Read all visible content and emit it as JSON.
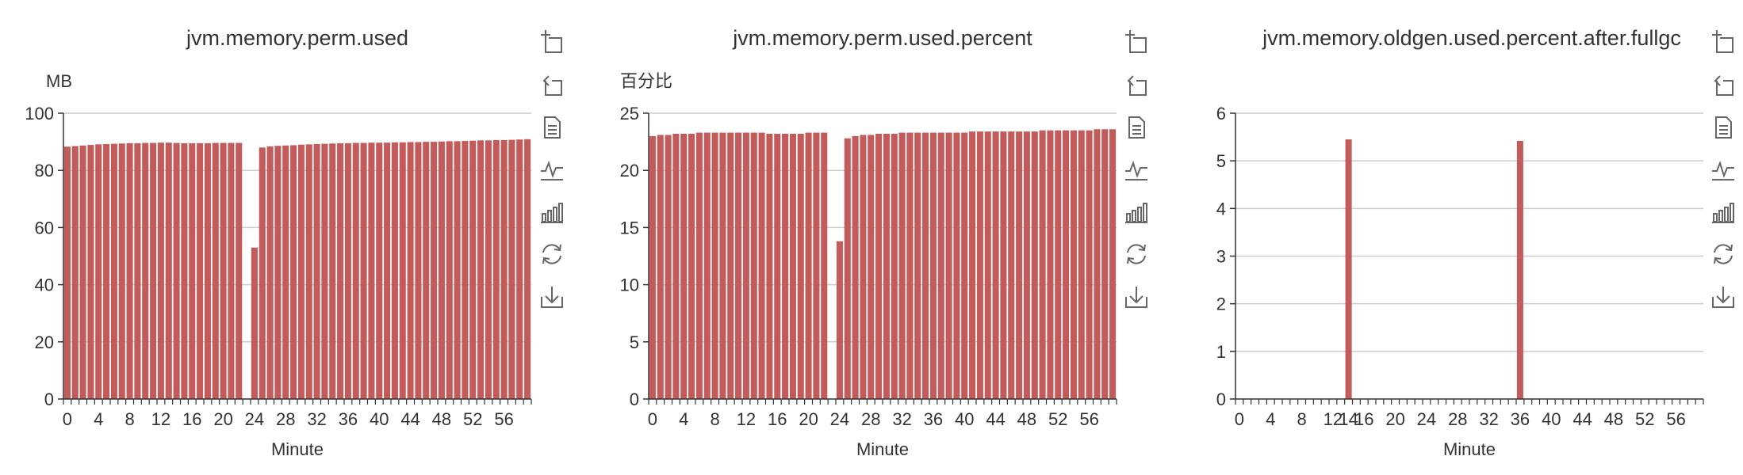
{
  "chart_data": [
    {
      "type": "bar",
      "title": "jvm.memory.perm.used",
      "ylabel": "MB",
      "xlabel": "Minute",
      "ylim": [
        0,
        100
      ],
      "yticks": [
        0,
        20,
        40,
        60,
        80,
        100
      ],
      "x": [
        0,
        1,
        2,
        3,
        4,
        5,
        6,
        7,
        8,
        9,
        10,
        11,
        12,
        13,
        14,
        15,
        16,
        17,
        18,
        19,
        20,
        21,
        22,
        23,
        24,
        25,
        26,
        27,
        28,
        29,
        30,
        31,
        32,
        33,
        34,
        35,
        36,
        37,
        38,
        39,
        40,
        41,
        42,
        43,
        44,
        45,
        46,
        47,
        48,
        49,
        50,
        51,
        52,
        53,
        54,
        55,
        56,
        57,
        58,
        59
      ],
      "xtick_labels": [
        "0",
        "4",
        "8",
        "12",
        "16",
        "20",
        "24",
        "28",
        "32",
        "36",
        "40",
        "44",
        "48",
        "52",
        "56"
      ],
      "series": [
        {
          "values": [
            88.3,
            88.5,
            88.7,
            88.9,
            89.1,
            89.2,
            89.3,
            89.4,
            89.5,
            89.5,
            89.6,
            89.6,
            89.7,
            89.7,
            89.6,
            89.5,
            89.5,
            89.5,
            89.5,
            89.6,
            89.6,
            89.6,
            89.6,
            null,
            53.0,
            88.0,
            88.4,
            88.6,
            88.7,
            88.8,
            89.0,
            89.1,
            89.2,
            89.3,
            89.4,
            89.5,
            89.5,
            89.6,
            89.6,
            89.7,
            89.7,
            89.7,
            89.8,
            89.8,
            89.9,
            89.9,
            90.0,
            90.0,
            90.1,
            90.2,
            90.2,
            90.3,
            90.4,
            90.5,
            90.5,
            90.6,
            90.6,
            90.7,
            90.8,
            90.9
          ]
        }
      ],
      "grid": true
    },
    {
      "type": "bar",
      "title": "jvm.memory.perm.used.percent",
      "ylabel": "百分比",
      "xlabel": "Minute",
      "ylim": [
        0,
        25
      ],
      "yticks": [
        0,
        5,
        10,
        15,
        20,
        25
      ],
      "x": [
        0,
        1,
        2,
        3,
        4,
        5,
        6,
        7,
        8,
        9,
        10,
        11,
        12,
        13,
        14,
        15,
        16,
        17,
        18,
        19,
        20,
        21,
        22,
        23,
        24,
        25,
        26,
        27,
        28,
        29,
        30,
        31,
        32,
        33,
        34,
        35,
        36,
        37,
        38,
        39,
        40,
        41,
        42,
        43,
        44,
        45,
        46,
        47,
        48,
        49,
        50,
        51,
        52,
        53,
        54,
        55,
        56,
        57,
        58,
        59
      ],
      "xtick_labels": [
        "0",
        "4",
        "8",
        "12",
        "16",
        "20",
        "24",
        "28",
        "32",
        "36",
        "40",
        "44",
        "48",
        "52",
        "56"
      ],
      "series": [
        {
          "values": [
            23.0,
            23.1,
            23.1,
            23.2,
            23.2,
            23.2,
            23.3,
            23.3,
            23.3,
            23.3,
            23.3,
            23.3,
            23.3,
            23.3,
            23.3,
            23.2,
            23.2,
            23.2,
            23.2,
            23.2,
            23.3,
            23.3,
            23.3,
            null,
            13.8,
            22.8,
            23.0,
            23.1,
            23.1,
            23.2,
            23.2,
            23.2,
            23.3,
            23.3,
            23.3,
            23.3,
            23.3,
            23.3,
            23.3,
            23.3,
            23.3,
            23.4,
            23.4,
            23.4,
            23.4,
            23.4,
            23.4,
            23.4,
            23.4,
            23.4,
            23.5,
            23.5,
            23.5,
            23.5,
            23.5,
            23.5,
            23.5,
            23.6,
            23.6,
            23.6
          ]
        }
      ],
      "grid": true
    },
    {
      "type": "bar",
      "title": "jvm.memory.oldgen.used.percent.after.fullgc",
      "ylabel": "",
      "xlabel": "Minute",
      "ylim": [
        0,
        6
      ],
      "yticks": [
        0,
        1,
        2,
        3,
        4,
        5,
        6
      ],
      "x": [
        0,
        1,
        2,
        3,
        4,
        5,
        6,
        7,
        8,
        9,
        10,
        11,
        12,
        13,
        14,
        15,
        16,
        17,
        18,
        19,
        20,
        21,
        22,
        23,
        24,
        25,
        26,
        27,
        28,
        29,
        30,
        31,
        32,
        33,
        34,
        35,
        36,
        37,
        38,
        39,
        40,
        41,
        42,
        43,
        44,
        45,
        46,
        47,
        48,
        49,
        50,
        51,
        52,
        53,
        54,
        55,
        56,
        57,
        58,
        59
      ],
      "xtick_labels": [
        "0",
        "4",
        "8",
        "12",
        "14",
        "16",
        "20",
        "24",
        "28",
        "32",
        "36",
        "40",
        "44",
        "48",
        "52",
        "56"
      ],
      "series": [
        {
          "values": [
            0,
            0,
            0,
            0,
            0,
            0,
            0,
            0,
            0,
            0,
            0,
            0,
            0,
            0,
            5.45,
            0,
            0,
            0,
            0,
            0,
            0,
            0,
            0,
            0,
            0,
            0,
            0,
            0,
            0,
            0,
            0,
            0,
            0,
            0,
            0,
            0,
            5.42,
            0,
            0,
            0,
            0,
            0,
            0,
            0,
            0,
            0,
            0,
            0,
            0,
            0,
            0,
            0,
            0,
            0,
            0,
            0,
            0,
            0,
            0,
            0
          ]
        }
      ],
      "grid": true
    }
  ],
  "colors": {
    "bar": "#c23531",
    "bar_fill": "#c45b5b",
    "axis": "#333333",
    "grid": "#cccccc",
    "icon": "#666666"
  },
  "toolbox": {
    "icons": [
      "zoom-icon",
      "zoom-reset-icon",
      "data-view-icon",
      "line-chart-icon",
      "bar-chart-icon",
      "restore-icon",
      "save-image-icon"
    ]
  }
}
